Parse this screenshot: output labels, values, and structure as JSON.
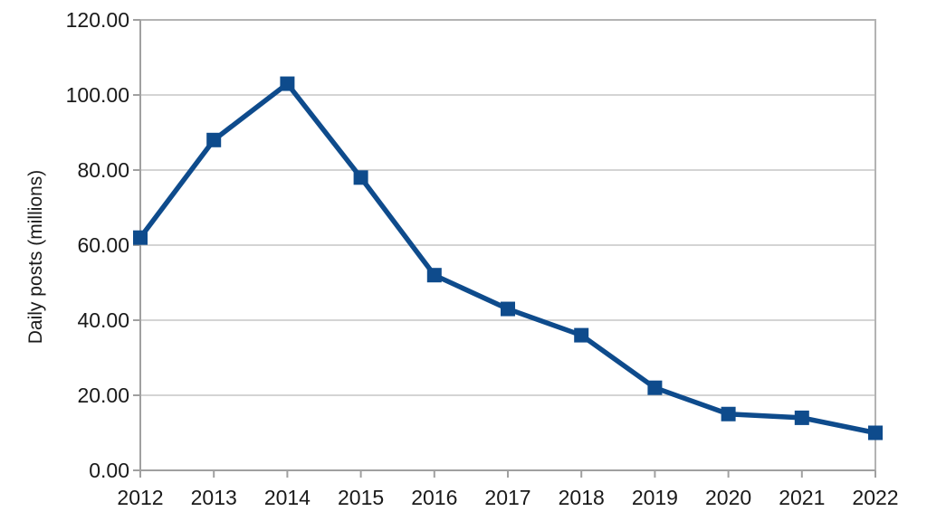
{
  "chart_data": {
    "type": "line",
    "title": "",
    "xlabel": "",
    "ylabel": "Daily posts (millions)",
    "categories": [
      "2012",
      "2013",
      "2014",
      "2015",
      "2016",
      "2017",
      "2018",
      "2019",
      "2020",
      "2021",
      "2022"
    ],
    "values": [
      62,
      88,
      103,
      78,
      52,
      43,
      36,
      22,
      15,
      14,
      10
    ],
    "ylim": [
      0,
      120
    ],
    "ytick_step": 20,
    "ytick_labels": [
      "0.00",
      "20.00",
      "40.00",
      "60.00",
      "80.00",
      "100.00",
      "120.00"
    ],
    "grid": "horizontal",
    "legend": "none",
    "marker": "square",
    "colors": {
      "line": "#0e4b8c",
      "gridline": "#c6c6c6",
      "plot_border": "#b3b3b3",
      "axis": "#a0a0a0",
      "text": "#1a1a1a",
      "background": "#ffffff"
    }
  }
}
